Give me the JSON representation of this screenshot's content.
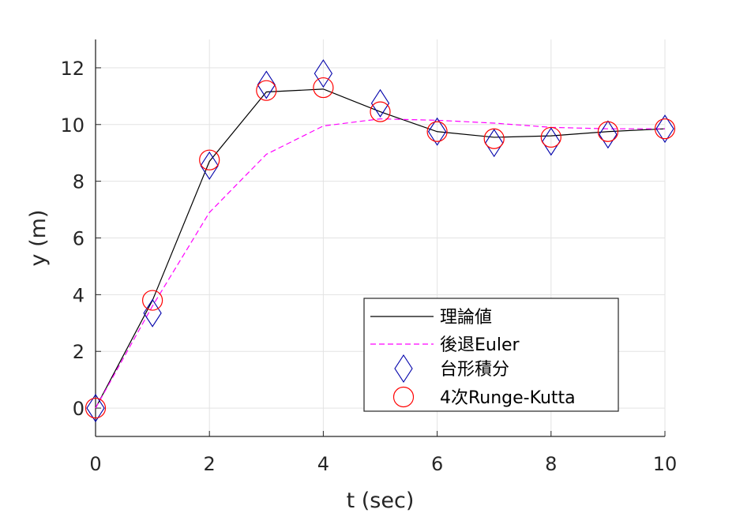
{
  "chart_data": {
    "type": "line",
    "title": "",
    "xlabel": "t (sec)",
    "ylabel": "y (m)",
    "xlim": [
      0,
      10
    ],
    "ylim": [
      -1,
      13
    ],
    "xticks": [
      "0",
      "2",
      "4",
      "6",
      "8",
      "10"
    ],
    "yticks": [
      "0",
      "2",
      "4",
      "6",
      "8",
      "10",
      "12"
    ],
    "grid": true,
    "legend_position": "bottom-right",
    "series": [
      {
        "name": "理論値",
        "style": "line",
        "color": "#000000",
        "dash": "solid",
        "x": [
          0,
          1,
          2,
          3,
          4,
          5,
          6,
          7,
          8,
          9,
          10
        ],
        "y": [
          0,
          3.8,
          8.7,
          11.15,
          11.25,
          10.45,
          9.75,
          9.55,
          9.6,
          9.75,
          9.85
        ]
      },
      {
        "name": "後退Euler",
        "style": "line",
        "color": "#ff00ff",
        "dash": "dashed",
        "x": [
          0,
          1,
          2,
          3,
          4,
          5,
          6,
          7,
          8,
          9,
          10
        ],
        "y": [
          0,
          3.6,
          6.9,
          8.95,
          9.95,
          10.2,
          10.15,
          10.05,
          9.9,
          9.85,
          9.85
        ]
      },
      {
        "name": "台形積分",
        "style": "marker",
        "marker": "diamond",
        "color": "#0000aa",
        "x": [
          0,
          1,
          2,
          3,
          4,
          5,
          6,
          7,
          8,
          9,
          10
        ],
        "y": [
          0,
          3.35,
          8.55,
          11.4,
          11.8,
          10.75,
          9.75,
          9.35,
          9.4,
          9.65,
          9.85
        ]
      },
      {
        "name": "4次Runge-Kutta",
        "style": "marker",
        "marker": "circle",
        "color": "#ff0000",
        "x": [
          0,
          1,
          2,
          3,
          4,
          5,
          6,
          7,
          8,
          9,
          10
        ],
        "y": [
          0,
          3.8,
          8.75,
          11.2,
          11.3,
          10.45,
          9.75,
          9.5,
          9.55,
          9.75,
          9.85
        ]
      }
    ]
  }
}
